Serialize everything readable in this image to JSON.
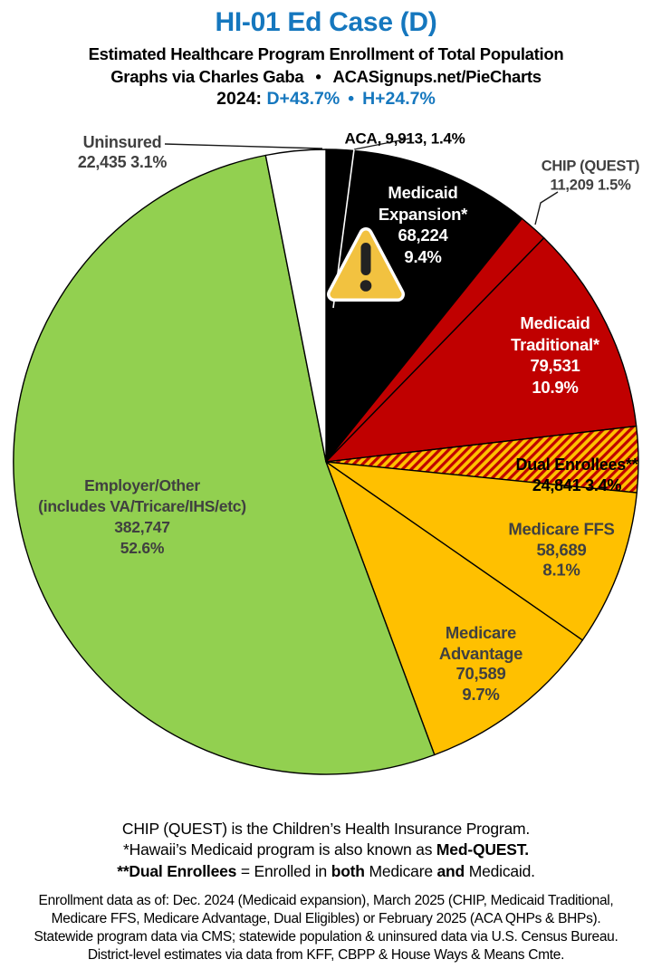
{
  "header": {
    "title": "HI-01 Ed Case (D)",
    "subtitle": "Estimated Healthcare Program Enrollment of Total Population",
    "credit_left": "Graphs via Charles Gaba",
    "credit_sep": "•",
    "credit_right": "ACASignups.net/PieCharts",
    "partisan_year": "2024:",
    "partisan_d": "D+43.7%",
    "partisan_sep": "•",
    "partisan_h": "H+24.7%"
  },
  "colors": {
    "title_blue": "#1577BE",
    "label_gray": "#404040",
    "slice_black": "#000000",
    "slice_red": "#C00000",
    "slice_gold": "#FFC000",
    "slice_green": "#92D050",
    "slice_white": "#FFFFFF",
    "warning_fill": "#F2C240",
    "warning_glyph": "#222222"
  },
  "chart_data": {
    "type": "pie",
    "title": "Estimated Healthcare Program Enrollment of Total Population",
    "start_angle_deg": 0,
    "direction": "clockwise",
    "legend_position": "none",
    "warning_icon_on": "Medicaid Expansion*",
    "slices": [
      {
        "id": "aca",
        "label": "ACA",
        "value": 9913,
        "value_display": "9,913",
        "pct": 1.4,
        "color": "#000000",
        "label_position": "outside",
        "label_lines": [
          "ACA, 9,913, 1.4%"
        ]
      },
      {
        "id": "medicaid_expansion",
        "label": "Medicaid Expansion*",
        "value": 68224,
        "value_display": "68,224",
        "pct": 9.4,
        "color": "#000000",
        "label_position": "inside",
        "label_lines": [
          "Medicaid",
          "Expansion*",
          "68,224",
          "9.4%"
        ]
      },
      {
        "id": "chip",
        "label": "CHIP (QUEST)",
        "value": 11209,
        "value_display": "11,209",
        "pct": 1.5,
        "color": "#C00000",
        "label_position": "outside",
        "label_lines": [
          "CHIP (QUEST)",
          "11,209 1.5%"
        ]
      },
      {
        "id": "medicaid_traditional",
        "label": "Medicaid Traditional*",
        "value": 79531,
        "value_display": "79,531",
        "pct": 10.9,
        "color": "#C00000",
        "label_position": "inside",
        "label_lines": [
          "Medicaid",
          "Traditional*",
          "79,531",
          "10.9%"
        ]
      },
      {
        "id": "dual_enrollees",
        "label": "Dual Enrollees**",
        "value": 24841,
        "value_display": "24,841",
        "pct": 3.4,
        "color": "hatch",
        "hatch": {
          "bg": "#FFC000",
          "stripe": "#C00000"
        },
        "label_position": "inside",
        "label_lines": [
          "Dual Enrollees**",
          "24,841 3.4%"
        ]
      },
      {
        "id": "medicare_ffs",
        "label": "Medicare FFS",
        "value": 58689,
        "value_display": "58,689",
        "pct": 8.1,
        "color": "#FFC000",
        "label_position": "inside",
        "label_lines": [
          "Medicare FFS",
          "58,689",
          "8.1%"
        ]
      },
      {
        "id": "medicare_advantage",
        "label": "Medicare Advantage",
        "value": 70589,
        "value_display": "70,589",
        "pct": 9.7,
        "color": "#FFC000",
        "label_position": "inside",
        "label_lines": [
          "Medicare",
          "Advantage",
          "70,589",
          "9.7%"
        ]
      },
      {
        "id": "employer_other",
        "label": "Employer/Other (includes VA/Tricare/IHS/etc)",
        "value": 382747,
        "value_display": "382,747",
        "pct": 52.6,
        "color": "#92D050",
        "label_position": "inside",
        "label_lines": [
          "Employer/Other",
          "(includes VA/Tricare/IHS/etc)",
          "382,747",
          "52.6%"
        ]
      },
      {
        "id": "uninsured",
        "label": "Uninsured",
        "value": 22435,
        "value_display": "22,435",
        "pct": 3.1,
        "color": "#FFFFFF",
        "label_position": "outside",
        "label_lines": [
          "Uninsured",
          "22,435 3.1%"
        ]
      }
    ]
  },
  "footnotes": [
    [
      {
        "t": "CHIP (QUEST) is the Children’s Health Insurance Program.",
        "b": 0
      }
    ],
    [
      {
        "t": "*Hawaii’s Medicaid program is also known as ",
        "b": 0
      },
      {
        "t": "Med-QUEST.",
        "b": 1
      }
    ],
    [
      {
        "t": "**Dual Enrollees",
        "b": 1
      },
      {
        "t": " = Enrolled in ",
        "b": 0
      },
      {
        "t": "both",
        "b": 1
      },
      {
        "t": " Medicare ",
        "b": 0
      },
      {
        "t": "and",
        "b": 1
      },
      {
        "t": " Medicaid.",
        "b": 0
      }
    ]
  ],
  "source_lines": [
    "Enrollment data as of: Dec. 2024 (Medicaid expansion), March 2025 (CHIP, Medicaid Traditional,",
    "Medicare FFS, Medicare Advantage, Dual Eligibles) or February 2025 (ACA QHPs & BHPs).",
    "Statewide program data via CMS; statewide population & uninsured data via U.S. Census Bureau.",
    "District-level estimates via data from KFF, CBPP & House Ways & Means Cmte."
  ]
}
